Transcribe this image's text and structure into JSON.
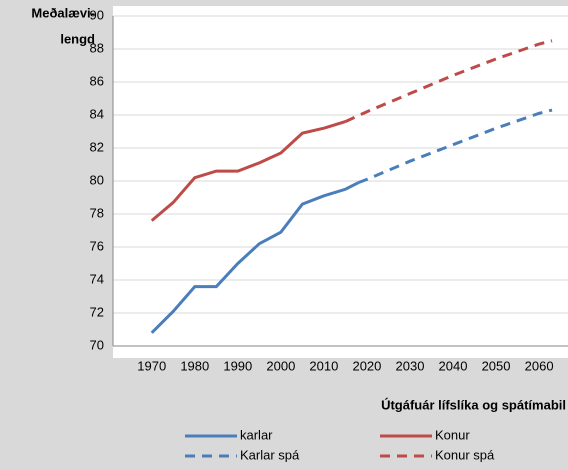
{
  "chart_data": {
    "type": "line",
    "ylabel": [
      "Meðalævi-",
      "lengd"
    ],
    "xlabel": "Útgáfuár lífslíka og spátímabil",
    "xlim": [
      1961,
      2063
    ],
    "xticks": [
      1970,
      1980,
      1990,
      2000,
      2010,
      2020,
      2030,
      2040,
      2050,
      2060
    ],
    "ylim": [
      70,
      90
    ],
    "yticks": [
      70,
      72,
      74,
      76,
      78,
      80,
      82,
      84,
      86,
      88,
      90
    ],
    "grid": true,
    "series": [
      {
        "name": "karlar",
        "color": "#4a7ebb",
        "dashed": false,
        "x": [
          1970,
          1975,
          1980,
          1985,
          1990,
          1995,
          2000,
          2005,
          2010,
          2015,
          2018
        ],
        "values": [
          70.8,
          72.1,
          73.6,
          73.6,
          75.0,
          76.2,
          76.9,
          78.6,
          79.1,
          79.5,
          79.9
        ]
      },
      {
        "name": "Konur",
        "color": "#be4b48",
        "dashed": false,
        "x": [
          1970,
          1975,
          1980,
          1985,
          1990,
          1995,
          2000,
          2005,
          2010,
          2015
        ],
        "values": [
          77.6,
          78.7,
          80.2,
          80.6,
          80.6,
          81.1,
          81.7,
          82.9,
          83.2,
          83.6
        ]
      },
      {
        "name": "Karlar spá",
        "color": "#4a7ebb",
        "dashed": true,
        "x": [
          2018,
          2020,
          2030,
          2040,
          2050,
          2060,
          2063
        ],
        "values": [
          79.9,
          80.1,
          81.2,
          82.2,
          83.2,
          84.1,
          84.3
        ]
      },
      {
        "name": "Konur spá",
        "color": "#be4b48",
        "dashed": true,
        "x": [
          2015,
          2020,
          2030,
          2040,
          2050,
          2060,
          2063
        ],
        "values": [
          83.6,
          84.2,
          85.3,
          86.4,
          87.4,
          88.3,
          88.5
        ]
      }
    ]
  }
}
